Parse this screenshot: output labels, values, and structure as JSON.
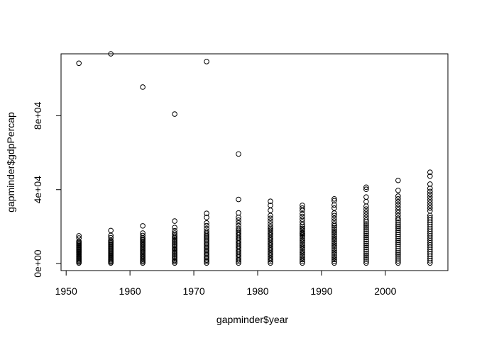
{
  "chart_data": {
    "type": "scatter",
    "xlabel": "gapminder$year",
    "ylabel": "gapminder$gdpPercap",
    "xlim": [
      1949.2,
      2009.8
    ],
    "ylim": [
      -3800,
      113500
    ],
    "x_ticks": [
      1950,
      1960,
      1970,
      1980,
      1990,
      2000
    ],
    "x_tick_labels": [
      "1950",
      "1960",
      "1970",
      "1980",
      "1990",
      "2000"
    ],
    "y_ticks": [
      0,
      40000,
      80000
    ],
    "y_tick_labels": [
      "0e+00",
      "4e+04",
      "8e+04"
    ],
    "grid": false,
    "legend": "none",
    "years": [
      1952,
      1957,
      1962,
      1967,
      1972,
      1977,
      1982,
      1987,
      1992,
      1997,
      2002,
      2007
    ],
    "points": [
      {
        "x": 1952,
        "y": 108400
      },
      {
        "x": 1952,
        "y": 15000
      },
      {
        "x": 1952,
        "y": 13800
      },
      {
        "x": 1957,
        "y": 113500
      },
      {
        "x": 1957,
        "y": 17900
      },
      {
        "x": 1957,
        "y": 15200
      },
      {
        "x": 1957,
        "y": 14000
      },
      {
        "x": 1962,
        "y": 95500
      },
      {
        "x": 1962,
        "y": 20400
      },
      {
        "x": 1962,
        "y": 16500
      },
      {
        "x": 1962,
        "y": 15200
      },
      {
        "x": 1967,
        "y": 80900
      },
      {
        "x": 1967,
        "y": 23000
      },
      {
        "x": 1967,
        "y": 19500
      },
      {
        "x": 1967,
        "y": 17800
      },
      {
        "x": 1967,
        "y": 16500
      },
      {
        "x": 1972,
        "y": 109300
      },
      {
        "x": 1972,
        "y": 27200
      },
      {
        "x": 1972,
        "y": 25000
      },
      {
        "x": 1972,
        "y": 22000
      },
      {
        "x": 1972,
        "y": 20500
      },
      {
        "x": 1972,
        "y": 19000
      },
      {
        "x": 1972,
        "y": 17500
      },
      {
        "x": 1977,
        "y": 59300
      },
      {
        "x": 1977,
        "y": 34700
      },
      {
        "x": 1977,
        "y": 27400
      },
      {
        "x": 1977,
        "y": 25000
      },
      {
        "x": 1977,
        "y": 23500
      },
      {
        "x": 1977,
        "y": 22000
      },
      {
        "x": 1977,
        "y": 20500
      },
      {
        "x": 1977,
        "y": 19000
      },
      {
        "x": 1982,
        "y": 33700
      },
      {
        "x": 1982,
        "y": 31500
      },
      {
        "x": 1982,
        "y": 28800
      },
      {
        "x": 1982,
        "y": 26000
      },
      {
        "x": 1982,
        "y": 24500
      },
      {
        "x": 1982,
        "y": 23000
      },
      {
        "x": 1982,
        "y": 21500
      },
      {
        "x": 1982,
        "y": 20000
      },
      {
        "x": 1987,
        "y": 31500
      },
      {
        "x": 1987,
        "y": 30000
      },
      {
        "x": 1987,
        "y": 28700
      },
      {
        "x": 1987,
        "y": 27000
      },
      {
        "x": 1987,
        "y": 25500
      },
      {
        "x": 1987,
        "y": 24000
      },
      {
        "x": 1987,
        "y": 22500
      },
      {
        "x": 1987,
        "y": 21000
      },
      {
        "x": 1987,
        "y": 16500
      },
      {
        "x": 1987,
        "y": 15500
      },
      {
        "x": 1992,
        "y": 35000
      },
      {
        "x": 1992,
        "y": 34000
      },
      {
        "x": 1992,
        "y": 31700
      },
      {
        "x": 1992,
        "y": 30000
      },
      {
        "x": 1992,
        "y": 27300
      },
      {
        "x": 1992,
        "y": 26000
      },
      {
        "x": 1992,
        "y": 24500
      },
      {
        "x": 1992,
        "y": 23000
      },
      {
        "x": 1992,
        "y": 21500
      },
      {
        "x": 1997,
        "y": 41300
      },
      {
        "x": 1997,
        "y": 40200
      },
      {
        "x": 1997,
        "y": 36000
      },
      {
        "x": 1997,
        "y": 33500
      },
      {
        "x": 1997,
        "y": 31000
      },
      {
        "x": 1997,
        "y": 29500
      },
      {
        "x": 1997,
        "y": 28000
      },
      {
        "x": 1997,
        "y": 26500
      },
      {
        "x": 1997,
        "y": 25000
      },
      {
        "x": 1997,
        "y": 23500
      },
      {
        "x": 2002,
        "y": 45000
      },
      {
        "x": 2002,
        "y": 39600
      },
      {
        "x": 2002,
        "y": 36500
      },
      {
        "x": 2002,
        "y": 35000
      },
      {
        "x": 2002,
        "y": 33500
      },
      {
        "x": 2002,
        "y": 32000
      },
      {
        "x": 2002,
        "y": 30500
      },
      {
        "x": 2002,
        "y": 29000
      },
      {
        "x": 2002,
        "y": 27500
      },
      {
        "x": 2002,
        "y": 26000
      },
      {
        "x": 2002,
        "y": 24500
      },
      {
        "x": 2007,
        "y": 49400
      },
      {
        "x": 2007,
        "y": 47300
      },
      {
        "x": 2007,
        "y": 43000
      },
      {
        "x": 2007,
        "y": 40700
      },
      {
        "x": 2007,
        "y": 39000
      },
      {
        "x": 2007,
        "y": 37500
      },
      {
        "x": 2007,
        "y": 36000
      },
      {
        "x": 2007,
        "y": 34500
      },
      {
        "x": 2007,
        "y": 33000
      },
      {
        "x": 2007,
        "y": 31500
      },
      {
        "x": 2007,
        "y": 30000
      },
      {
        "x": 2007,
        "y": 28500
      }
    ],
    "clusters": [
      {
        "x": 1952,
        "ymin": 300,
        "ymax": 12000
      },
      {
        "x": 1957,
        "ymin": 300,
        "ymax": 12500
      },
      {
        "x": 1962,
        "ymin": 300,
        "ymax": 14000
      },
      {
        "x": 1967,
        "ymin": 300,
        "ymax": 15500
      },
      {
        "x": 1972,
        "ymin": 300,
        "ymax": 16500
      },
      {
        "x": 1977,
        "ymin": 300,
        "ymax": 18000
      },
      {
        "x": 1982,
        "ymin": 300,
        "ymax": 19000
      },
      {
        "x": 1987,
        "ymin": 300,
        "ymax": 20000
      },
      {
        "x": 1992,
        "ymin": 300,
        "ymax": 20500
      },
      {
        "x": 1997,
        "ymin": 300,
        "ymax": 22500
      },
      {
        "x": 2002,
        "ymin": 300,
        "ymax": 23500
      },
      {
        "x": 2007,
        "ymin": 300,
        "ymax": 26000
      }
    ]
  }
}
